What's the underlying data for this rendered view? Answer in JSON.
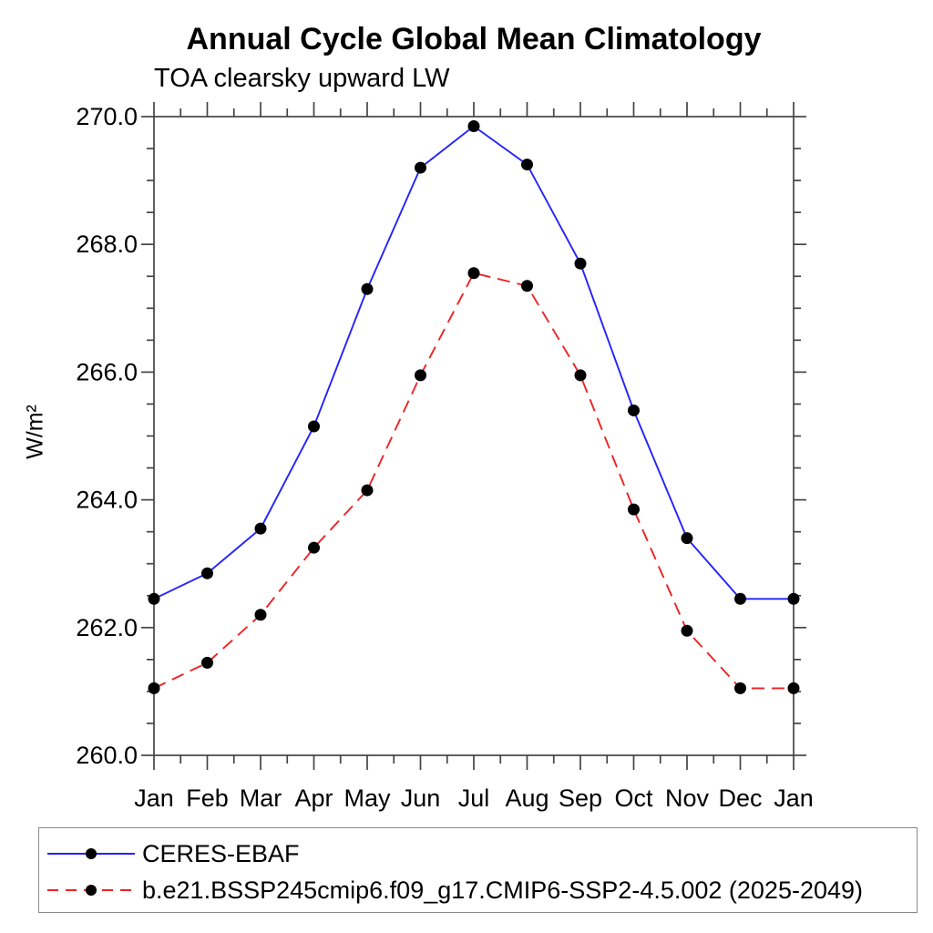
{
  "page": {
    "background_color": "#ffffff",
    "text_color": "#000000"
  },
  "chart_data": {
    "type": "line",
    "title": "Annual Cycle Global Mean Climatology",
    "subtitle": "TOA clearsky upward LW",
    "ylabel": "W/m²",
    "xlabel": "",
    "grid": false,
    "legend_position": "bottom",
    "categories": [
      "Jan",
      "Feb",
      "Mar",
      "Apr",
      "May",
      "Jun",
      "Jul",
      "Aug",
      "Sep",
      "Oct",
      "Nov",
      "Dec",
      "Jan"
    ],
    "ylim": [
      260.0,
      270.0
    ],
    "ytick_major_step": 2.0,
    "ytick_minor_step": 0.5,
    "ytick_labels": [
      "260.0",
      "262.0",
      "264.0",
      "266.0",
      "268.0",
      "270.0"
    ],
    "frame_color": "#444444",
    "marker": {
      "shape": "filled-circle",
      "color": "#000000"
    },
    "series": [
      {
        "name": "CERES-EBAF",
        "color": "#2222ff",
        "line_style": "solid",
        "values": [
          262.45,
          262.85,
          263.55,
          265.15,
          267.3,
          269.2,
          269.85,
          269.25,
          267.7,
          265.4,
          263.4,
          262.45,
          262.45
        ]
      },
      {
        "name": "b.e21.BSSP245cmip6.f09_g17.CMIP6-SSP2-4.5.002 (2025-2049)",
        "color": "#ee2222",
        "line_style": "dashed",
        "values": [
          261.05,
          261.45,
          262.2,
          263.25,
          264.15,
          265.95,
          267.55,
          267.35,
          265.95,
          263.85,
          261.95,
          261.05,
          261.05
        ]
      }
    ]
  }
}
